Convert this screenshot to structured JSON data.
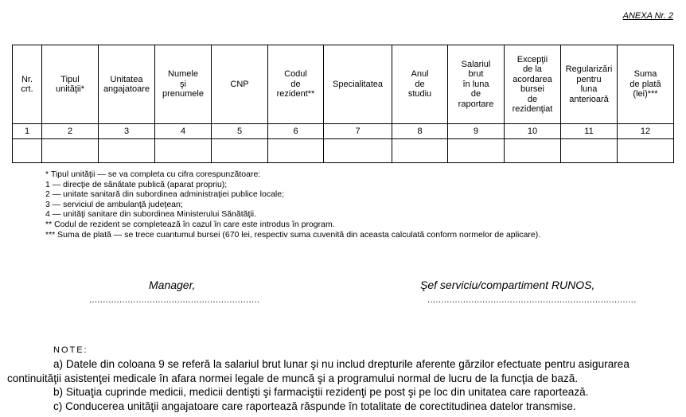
{
  "annex_label": "ANEXA Nr. 2",
  "table": {
    "headers": [
      [
        "Nr.",
        "crt."
      ],
      [
        "Tipul",
        "unităţii*"
      ],
      [
        "Unitatea",
        "angajatoare"
      ],
      [
        "Numele",
        "şi",
        "prenumele"
      ],
      [
        "CNP"
      ],
      [
        "Codul",
        "de",
        "rezident**"
      ],
      [
        "Specialitatea"
      ],
      [
        "Anul",
        "de",
        "studiu"
      ],
      [
        "Salariul",
        "brut",
        "în luna",
        "de",
        "raportare"
      ],
      [
        "Excepţii",
        "de la",
        "acordarea",
        "bursei",
        "de",
        "rezidenţiat"
      ],
      [
        "Regularizări",
        "pentru",
        "luna",
        "anterioară"
      ],
      [
        "Suma",
        "de plată",
        "(lei)***"
      ]
    ],
    "column_numbers": [
      "1",
      "2",
      "3",
      "4",
      "5",
      "6",
      "7",
      "8",
      "9",
      "10",
      "11",
      "12"
    ]
  },
  "footnotes": [
    "* Tipul unităţii — se va completa cu cifra corespunzătoare:",
    "1 — direcţie de sănătate publică (aparat propriu);",
    "2 — unitate sanitară din subordinea administraţiei publice locale;",
    "3 — serviciul de ambulanţă judeţean;",
    "4 — unităţi sanitare din subordinea Ministerului Sănătăţii.",
    "** Codul de rezident se completează în cazul în care este introdus în program.",
    "*** Suma de plată — se trece cuantumul bursei (670 lei, respectiv suma cuvenită din aceasta calculată conform normelor de aplicare)."
  ],
  "signatures": {
    "left_title": "Manager,",
    "left_line": "..............................................................",
    "right_title": "Şef serviciu/compartiment RUNOS,",
    "right_line": "............................................................................"
  },
  "notes": {
    "title": "NOTE:",
    "a_line1": "a) Datele din coloana 9 se referă la salariul brut lunar şi nu includ drepturile aferente gărzilor efectuate pentru asigurarea",
    "a_line2": "continuităţii asistenţei medicale în afara normei legale de muncă şi a programului normal de lucru de la funcţia de bază.",
    "b": "b) Situaţia cuprinde medicii, medicii dentişti şi farmaciştii rezidenţi pe post şi pe loc din unitatea care raportează.",
    "c": "c) Conducerea unităţii angajatoare care raportează răspunde în totalitate de corectitudinea datelor transmise."
  }
}
